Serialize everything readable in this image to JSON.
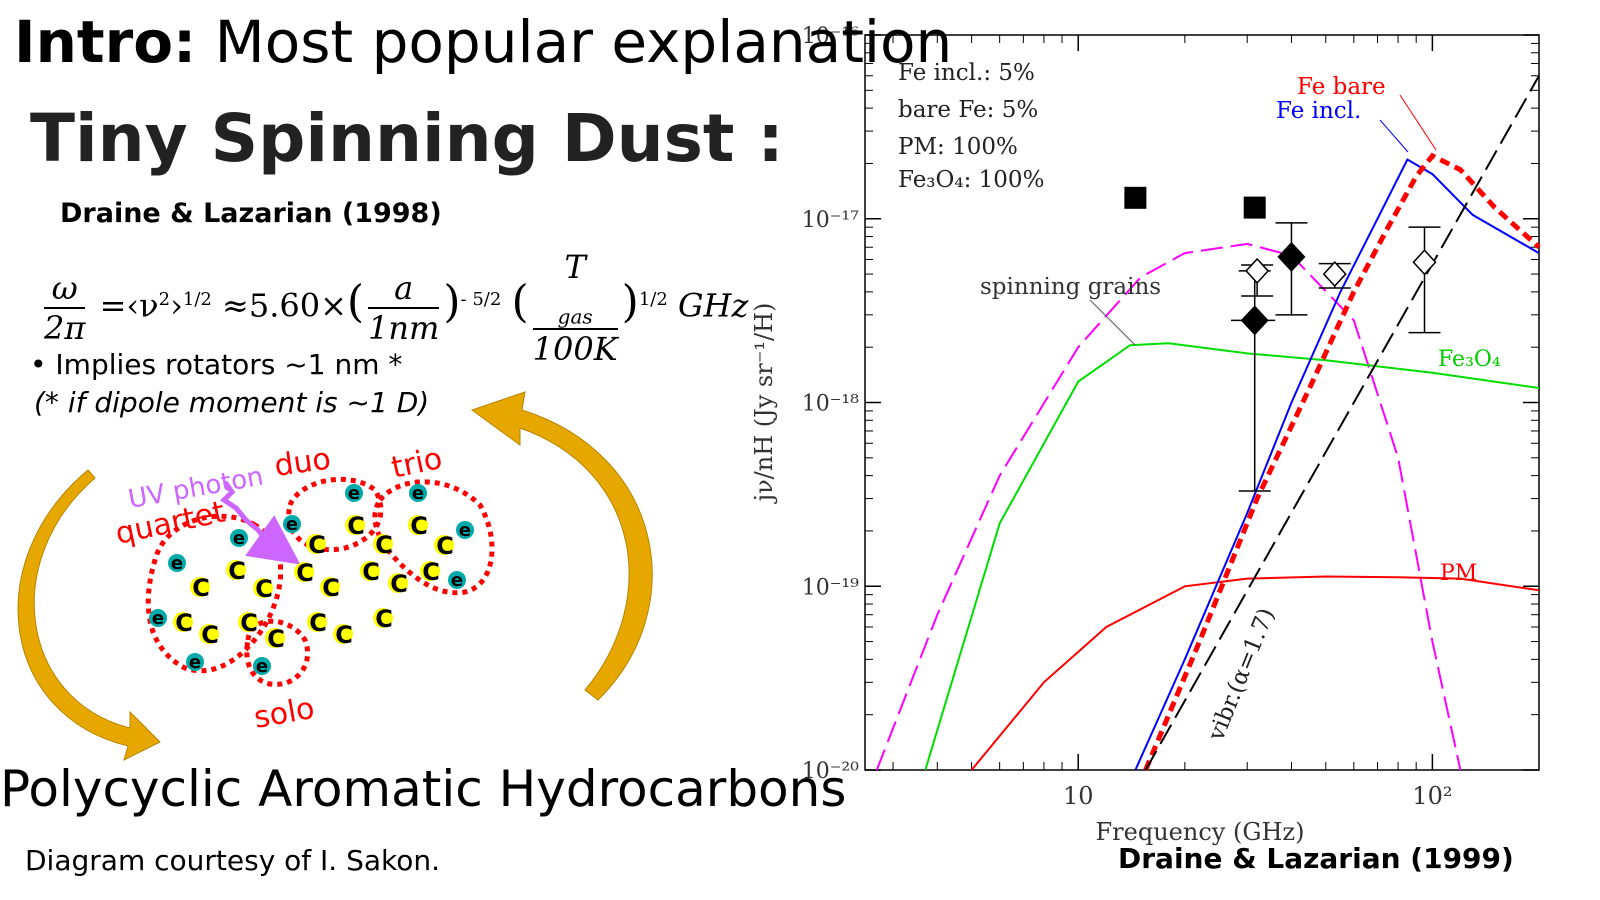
{
  "slide": {
    "intro_bold": "Intro:",
    "intro_rest": " Most popular explanation",
    "title": "Tiny Spinning Dust :",
    "citation_1998": "Draine & Lazarian (1998)",
    "formula": {
      "omega": "ω",
      "two_pi": "2π",
      "eq_rms": "=‹ν",
      "sq": "2",
      "rms_exp": "1/2",
      "approx": "≈5.60×",
      "a": "a",
      "nm": "1nm",
      "exp_a": "- 5/2",
      "T": "T",
      "gas": "gas",
      "K": "100K",
      "exp_T": "1/2",
      "unit": "GHz"
    },
    "bullet": "•   Implies rotators ~1 nm *",
    "note": "(* if dipole moment is ~1 D)",
    "pah_title": "Polycyclic Aromatic Hydrocarbons",
    "credit": "Diagram courtesy of I. Sakon.",
    "citation_1999": "Draine & Lazarian (1999)"
  },
  "diagram": {
    "labels": {
      "uv": "UV photon",
      "duo": "duo",
      "trio": "trio",
      "quartet": "quartet",
      "solo": "solo"
    },
    "atom_c": "C",
    "atom_h": "e",
    "colors": {
      "carbon": "#ffff00",
      "hydrogen": "#00aaaa",
      "groups": "#ff0000",
      "uv": "#cc66ff",
      "arrows": "#e6a800"
    }
  },
  "chart_data": {
    "type": "line",
    "x_scale": "log",
    "y_scale": "log",
    "xlim": [
      2.5,
      200
    ],
    "ylim": [
      1e-20,
      1e-16
    ],
    "xlabel": "Frequency (GHz)",
    "ylabel": "jν/nH (Jy sr⁻¹/H)",
    "x_tick_labels": [
      "10",
      "10²"
    ],
    "y_tick_labels": [
      "10⁻²⁰",
      "10⁻¹⁹",
      "10⁻¹⁸",
      "10⁻¹⁷",
      "10⁻¹⁶"
    ],
    "legend": [
      "Fe incl.: 5%",
      "bare Fe: 5%",
      "PM: 100%",
      "Fe₃O₄: 100%"
    ],
    "series": [
      {
        "name": "spinning grains",
        "color": "#ff00ff",
        "dash": true,
        "x": [
          2.7,
          4,
          6,
          10,
          15,
          20,
          30,
          40,
          60,
          80,
          100,
          120
        ],
        "y": [
          1e-20,
          7e-20,
          4e-19,
          2e-18,
          4.8e-18,
          6.5e-18,
          7.3e-18,
          6.3e-18,
          2.8e-18,
          5e-19,
          5e-20,
          1e-20
        ]
      },
      {
        "name": "Fe₃O₄",
        "color": "#00dd00",
        "dash": false,
        "x": [
          3.7,
          6,
          10,
          14,
          18,
          30,
          50,
          100,
          200
        ],
        "y": [
          1e-20,
          2.2e-19,
          1.3e-18,
          2.05e-18,
          2.1e-18,
          1.85e-18,
          1.7e-18,
          1.45e-18,
          1.2e-18
        ]
      },
      {
        "name": "PM",
        "color": "#ff0000",
        "dash": false,
        "x": [
          5,
          8,
          12,
          20,
          30,
          50,
          80,
          120,
          200
        ],
        "y": [
          1e-20,
          3e-20,
          6e-20,
          1e-19,
          1.1e-19,
          1.13e-19,
          1.12e-19,
          1.1e-19,
          9.5e-20
        ]
      },
      {
        "name": "Fe incl.",
        "color": "#0000ff",
        "dash": false,
        "x": [
          14.5,
          20,
          30,
          40,
          55,
          70,
          85,
          100,
          130,
          200
        ],
        "y": [
          1e-20,
          4e-20,
          2.5e-19,
          1e-18,
          4e-18,
          1e-17,
          2.1e-17,
          1.75e-17,
          1.05e-17,
          6.5e-18
        ]
      },
      {
        "name": "Fe bare",
        "color": "#ff0000",
        "dash": true,
        "x": [
          15.5,
          22,
          32,
          45,
          60,
          75,
          90,
          100,
          120,
          150,
          200
        ],
        "y": [
          1e-20,
          5e-20,
          3e-19,
          1.2e-18,
          4e-18,
          9e-18,
          1.7e-17,
          2.2e-17,
          1.85e-17,
          1.15e-17,
          7e-18
        ]
      },
      {
        "name": "vibr.(α=1.7)",
        "color": "#000000",
        "dash": true,
        "x": [
          15.5,
          200
        ],
        "y": [
          1e-20,
          6e-17
        ]
      }
    ],
    "points": [
      {
        "marker": "square",
        "x": 14.5,
        "y": 1.3e-17
      },
      {
        "marker": "square",
        "x": 31.5,
        "y": 1.15e-17
      },
      {
        "marker": "diamond",
        "x": 31.5,
        "y": 2.8e-18,
        "ylo": 3.3e-19,
        "yhi": 5.2e-18,
        "xlo": 27,
        "xhi": 36
      },
      {
        "marker": "diamond",
        "x": 40,
        "y": 6.2e-18,
        "ylo": 3e-18,
        "yhi": 9.5e-18
      },
      {
        "marker": "open-diamond",
        "x": 32,
        "y": 5.2e-18,
        "ylo": 3.8e-18,
        "yhi": 5.6e-18
      },
      {
        "marker": "open-diamond",
        "x": 53,
        "y": 5e-18,
        "ylo": 4.2e-18,
        "yhi": 5.7e-18
      },
      {
        "marker": "open-diamond",
        "x": 95,
        "y": 5.8e-18,
        "ylo": 2.4e-18,
        "yhi": 9e-18
      }
    ],
    "annotations": [
      "Fe bare",
      "Fe incl.",
      "spinning grains",
      "Fe₃O₄",
      "PM",
      "vibr.(α=1.7)"
    ]
  }
}
